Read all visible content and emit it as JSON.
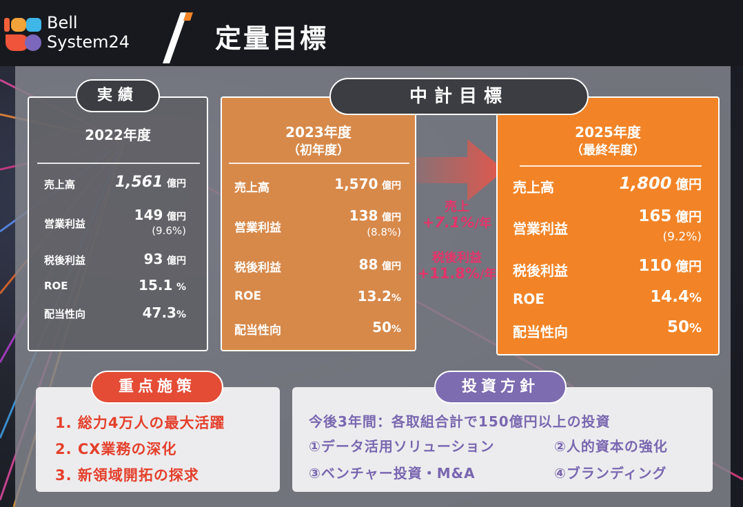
{
  "header": {
    "brand_line1": "Bell",
    "brand_line2": "System24",
    "title": "定量目標"
  },
  "actual": {
    "badge": "実績",
    "year": "2022年度",
    "rows": [
      {
        "label": "売上高",
        "value": "1,561",
        "unit": "億円"
      },
      {
        "label": "営業利益",
        "value": "149",
        "unit": "億円",
        "sub": "(9.6%)"
      },
      {
        "label": "税後利益",
        "value": "93",
        "unit": "億円"
      },
      {
        "label": "ROE",
        "value": "15.1",
        "unit": "%"
      },
      {
        "label": "配当性向",
        "value": "47.3",
        "unit": "%"
      }
    ]
  },
  "plan_badge": "中計目標",
  "plan2023": {
    "year": "2023年度",
    "year_sub": "（初年度）",
    "rows": [
      {
        "label": "売上高",
        "value": "1,570",
        "unit": "億円"
      },
      {
        "label": "営業利益",
        "value": "138",
        "unit": "億円",
        "sub": "(8.8%)"
      },
      {
        "label": "税後利益",
        "value": "88",
        "unit": "億円"
      },
      {
        "label": "ROE",
        "value": "13.2",
        "unit": "%"
      },
      {
        "label": "配当性向",
        "value": "50",
        "unit": "%"
      }
    ]
  },
  "plan2025": {
    "year": "2025年度",
    "year_sub": "（最終年度）",
    "rows": [
      {
        "label": "売上高",
        "value": "1,800",
        "unit": "億円"
      },
      {
        "label": "営業利益",
        "value": "165",
        "unit": "億円",
        "sub": "(9.2%)"
      },
      {
        "label": "税後利益",
        "value": "110",
        "unit": "億円"
      },
      {
        "label": "ROE",
        "value": "14.4",
        "unit": "%"
      },
      {
        "label": "配当性向",
        "value": "50",
        "unit": "%"
      }
    ]
  },
  "growth": {
    "sales_label": "売上",
    "sales_value": "+7.1%",
    "sales_unit": "/年",
    "profit_label": "税後利益",
    "profit_value": "+11.8%",
    "profit_unit": "/年"
  },
  "priorities": {
    "badge": "重点施策",
    "items": [
      "1. 総力4万人の最大活躍",
      "2. CX業務の深化",
      "3. 新領域開拓の探求"
    ]
  },
  "investment": {
    "badge": "投資方針",
    "headline": "今後3年間：各取組合計で150億円以上の投資",
    "items": [
      "①データ活用ソリューション",
      "②人的資本の強化",
      "③ベンチャー投資・M&A",
      "④ブランディング"
    ]
  },
  "colors": {
    "orange": "#f28427",
    "orange_muted": "#d7894a",
    "red": "#e4402c",
    "purple": "#7e6cb1",
    "pink": "#e4346a"
  }
}
